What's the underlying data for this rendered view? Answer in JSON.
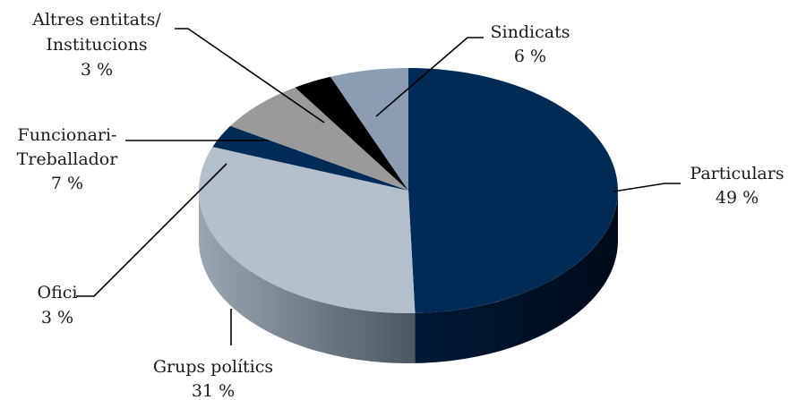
{
  "chart_data": {
    "type": "pie",
    "style": "3d-exploded-none",
    "slices": [
      {
        "key": "particulars",
        "label": "Particulars",
        "value": 49,
        "pct_text": "49 %",
        "color": "#002b57",
        "side_color": "#001a35"
      },
      {
        "key": "grups",
        "label": "Grups polítics",
        "value": 31,
        "pct_text": "31 %",
        "color": "#b3bfcb",
        "side_color": "#6f7c88"
      },
      {
        "key": "ofici",
        "label": "Ofici",
        "value": 3,
        "pct_text": "3 %",
        "color": "#002b57",
        "side_color": "#001a35"
      },
      {
        "key": "funcionari",
        "label_lines": [
          "Funcionari-",
          "Treballador"
        ],
        "value": 7,
        "pct_text": "7 %",
        "color": "#9a9a9a",
        "side_color": "#5c5c5c"
      },
      {
        "key": "altres",
        "label_lines": [
          "Altres entitats/",
          "Institucions"
        ],
        "value": 3,
        "pct_text": "3 %",
        "color": "#000000",
        "side_color": "#000000"
      },
      {
        "key": "sindicats",
        "label": "Sindicats",
        "value": 6,
        "pct_text": "6 %",
        "color": "#8c9db1",
        "side_color": "#55687c"
      }
    ]
  }
}
